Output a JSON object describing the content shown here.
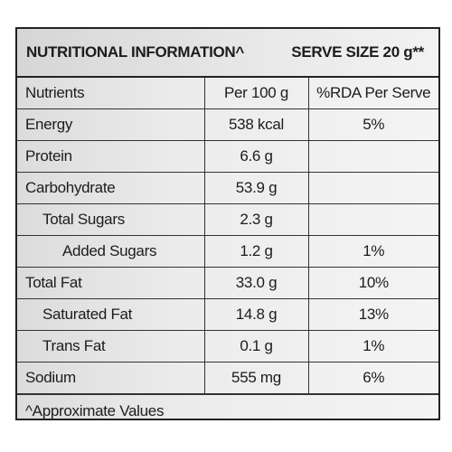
{
  "header": {
    "title": "NUTRITIONAL INFORMATION^",
    "serve_size": "SERVE SIZE 20 g**"
  },
  "table": {
    "columns": [
      "Nutrients",
      "Per 100 g",
      "%RDA Per Serve"
    ],
    "rows": [
      {
        "nutrient": "Energy",
        "per100": "538 kcal",
        "rda": "5%"
      },
      {
        "nutrient": "Protein",
        "per100": "6.6 g",
        "rda": ""
      },
      {
        "nutrient": "Carbohydrate",
        "per100": "53.9 g",
        "rda": ""
      },
      {
        "nutrient": "Total Sugars",
        "per100": "2.3 g",
        "rda": ""
      },
      {
        "nutrient": "Added Sugars",
        "per100": "1.2 g",
        "rda": "1%"
      },
      {
        "nutrient": "Total Fat",
        "per100": "33.0 g",
        "rda": "10%"
      },
      {
        "nutrient": "Saturated Fat",
        "per100": "14.8 g",
        "rda": "13%"
      },
      {
        "nutrient": "Trans Fat",
        "per100": "0.1 g",
        "rda": "1%"
      },
      {
        "nutrient": "Sodium",
        "per100": "555 mg",
        "rda": "6%"
      }
    ]
  },
  "footer": {
    "note": "^Approximate Values"
  }
}
